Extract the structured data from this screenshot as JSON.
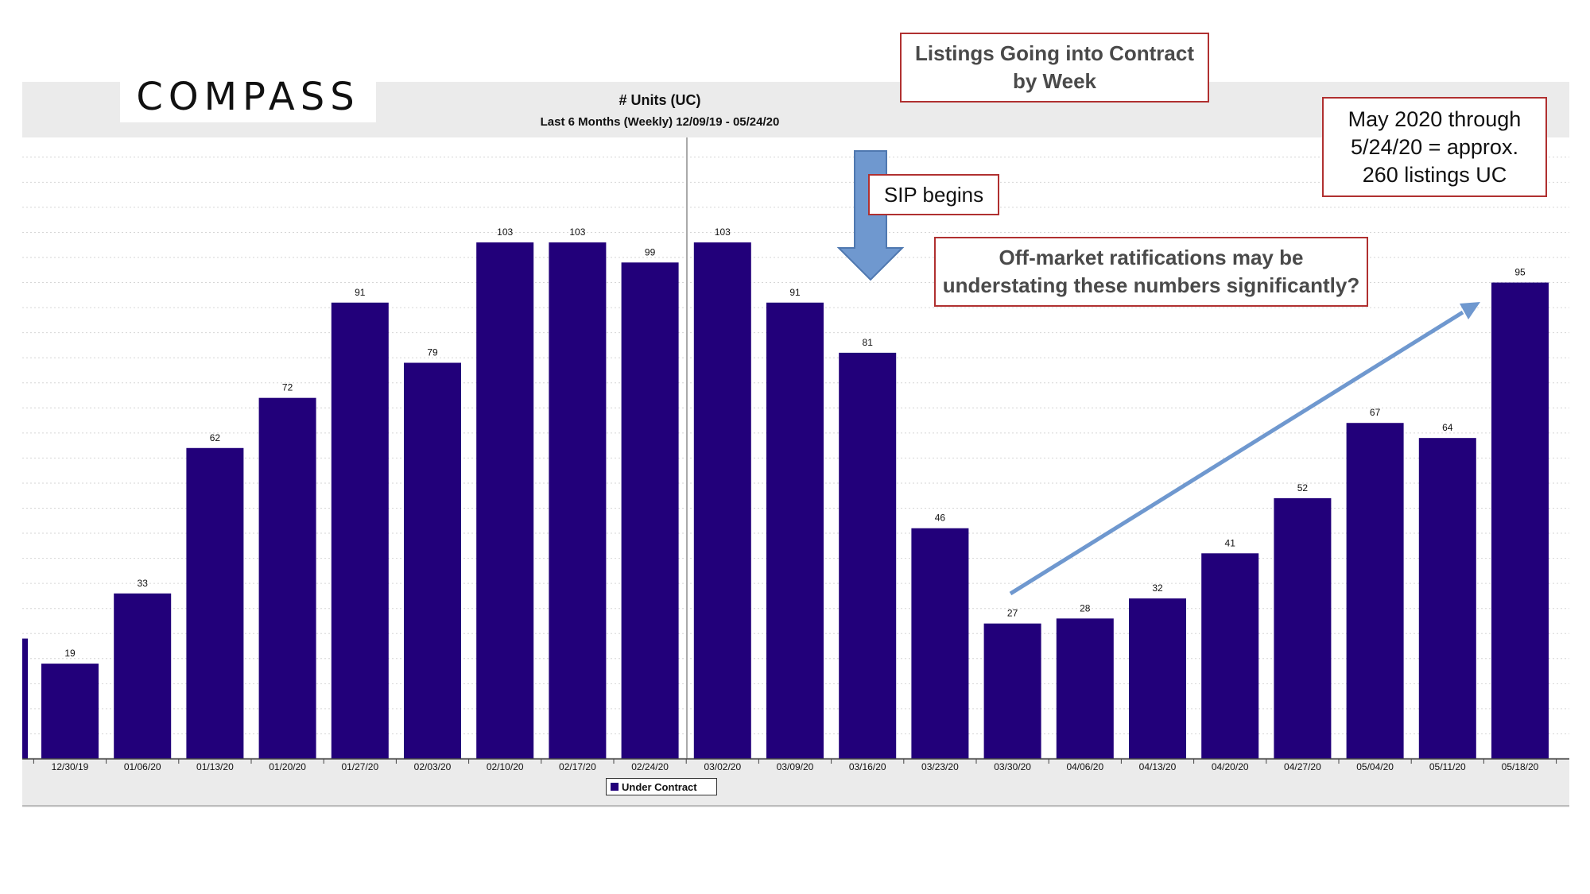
{
  "logo": {
    "text": "COMPASS"
  },
  "annotations": {
    "listings_title": [
      "Listings Going into Contract",
      "by Week"
    ],
    "may_note": [
      "May 2020 through",
      "5/24/20 = approx.",
      "260 listings UC"
    ],
    "sip": "SIP begins",
    "off_market": [
      "Off-market ratifications may be",
      "understating these numbers significantly?"
    ]
  },
  "colors": {
    "bar": "#22007a",
    "arrow": "#6f98cf",
    "callout_border": "#b03030"
  },
  "chart_data": {
    "type": "bar",
    "title": "# Units (UC)",
    "subtitle": "Last 6 Months (Weekly) 12/09/19 - 05/24/20",
    "categories": [
      "12/30/19",
      "01/06/20",
      "01/13/20",
      "01/20/20",
      "01/27/20",
      "02/03/20",
      "02/10/20",
      "02/17/20",
      "02/24/20",
      "03/02/20",
      "03/09/20",
      "03/16/20",
      "03/23/20",
      "03/30/20",
      "04/06/20",
      "04/13/20",
      "04/20/20",
      "04/27/20",
      "05/04/20",
      "05/11/20",
      "05/18/20"
    ],
    "series": [
      {
        "name": "Under Contract",
        "values": [
          19,
          33,
          62,
          72,
          91,
          79,
          103,
          103,
          99,
          103,
          91,
          81,
          46,
          27,
          28,
          32,
          41,
          52,
          67,
          64,
          95
        ]
      }
    ],
    "ylim": [
      0,
      120
    ],
    "grid": true,
    "legend_position": "bottom-center"
  }
}
